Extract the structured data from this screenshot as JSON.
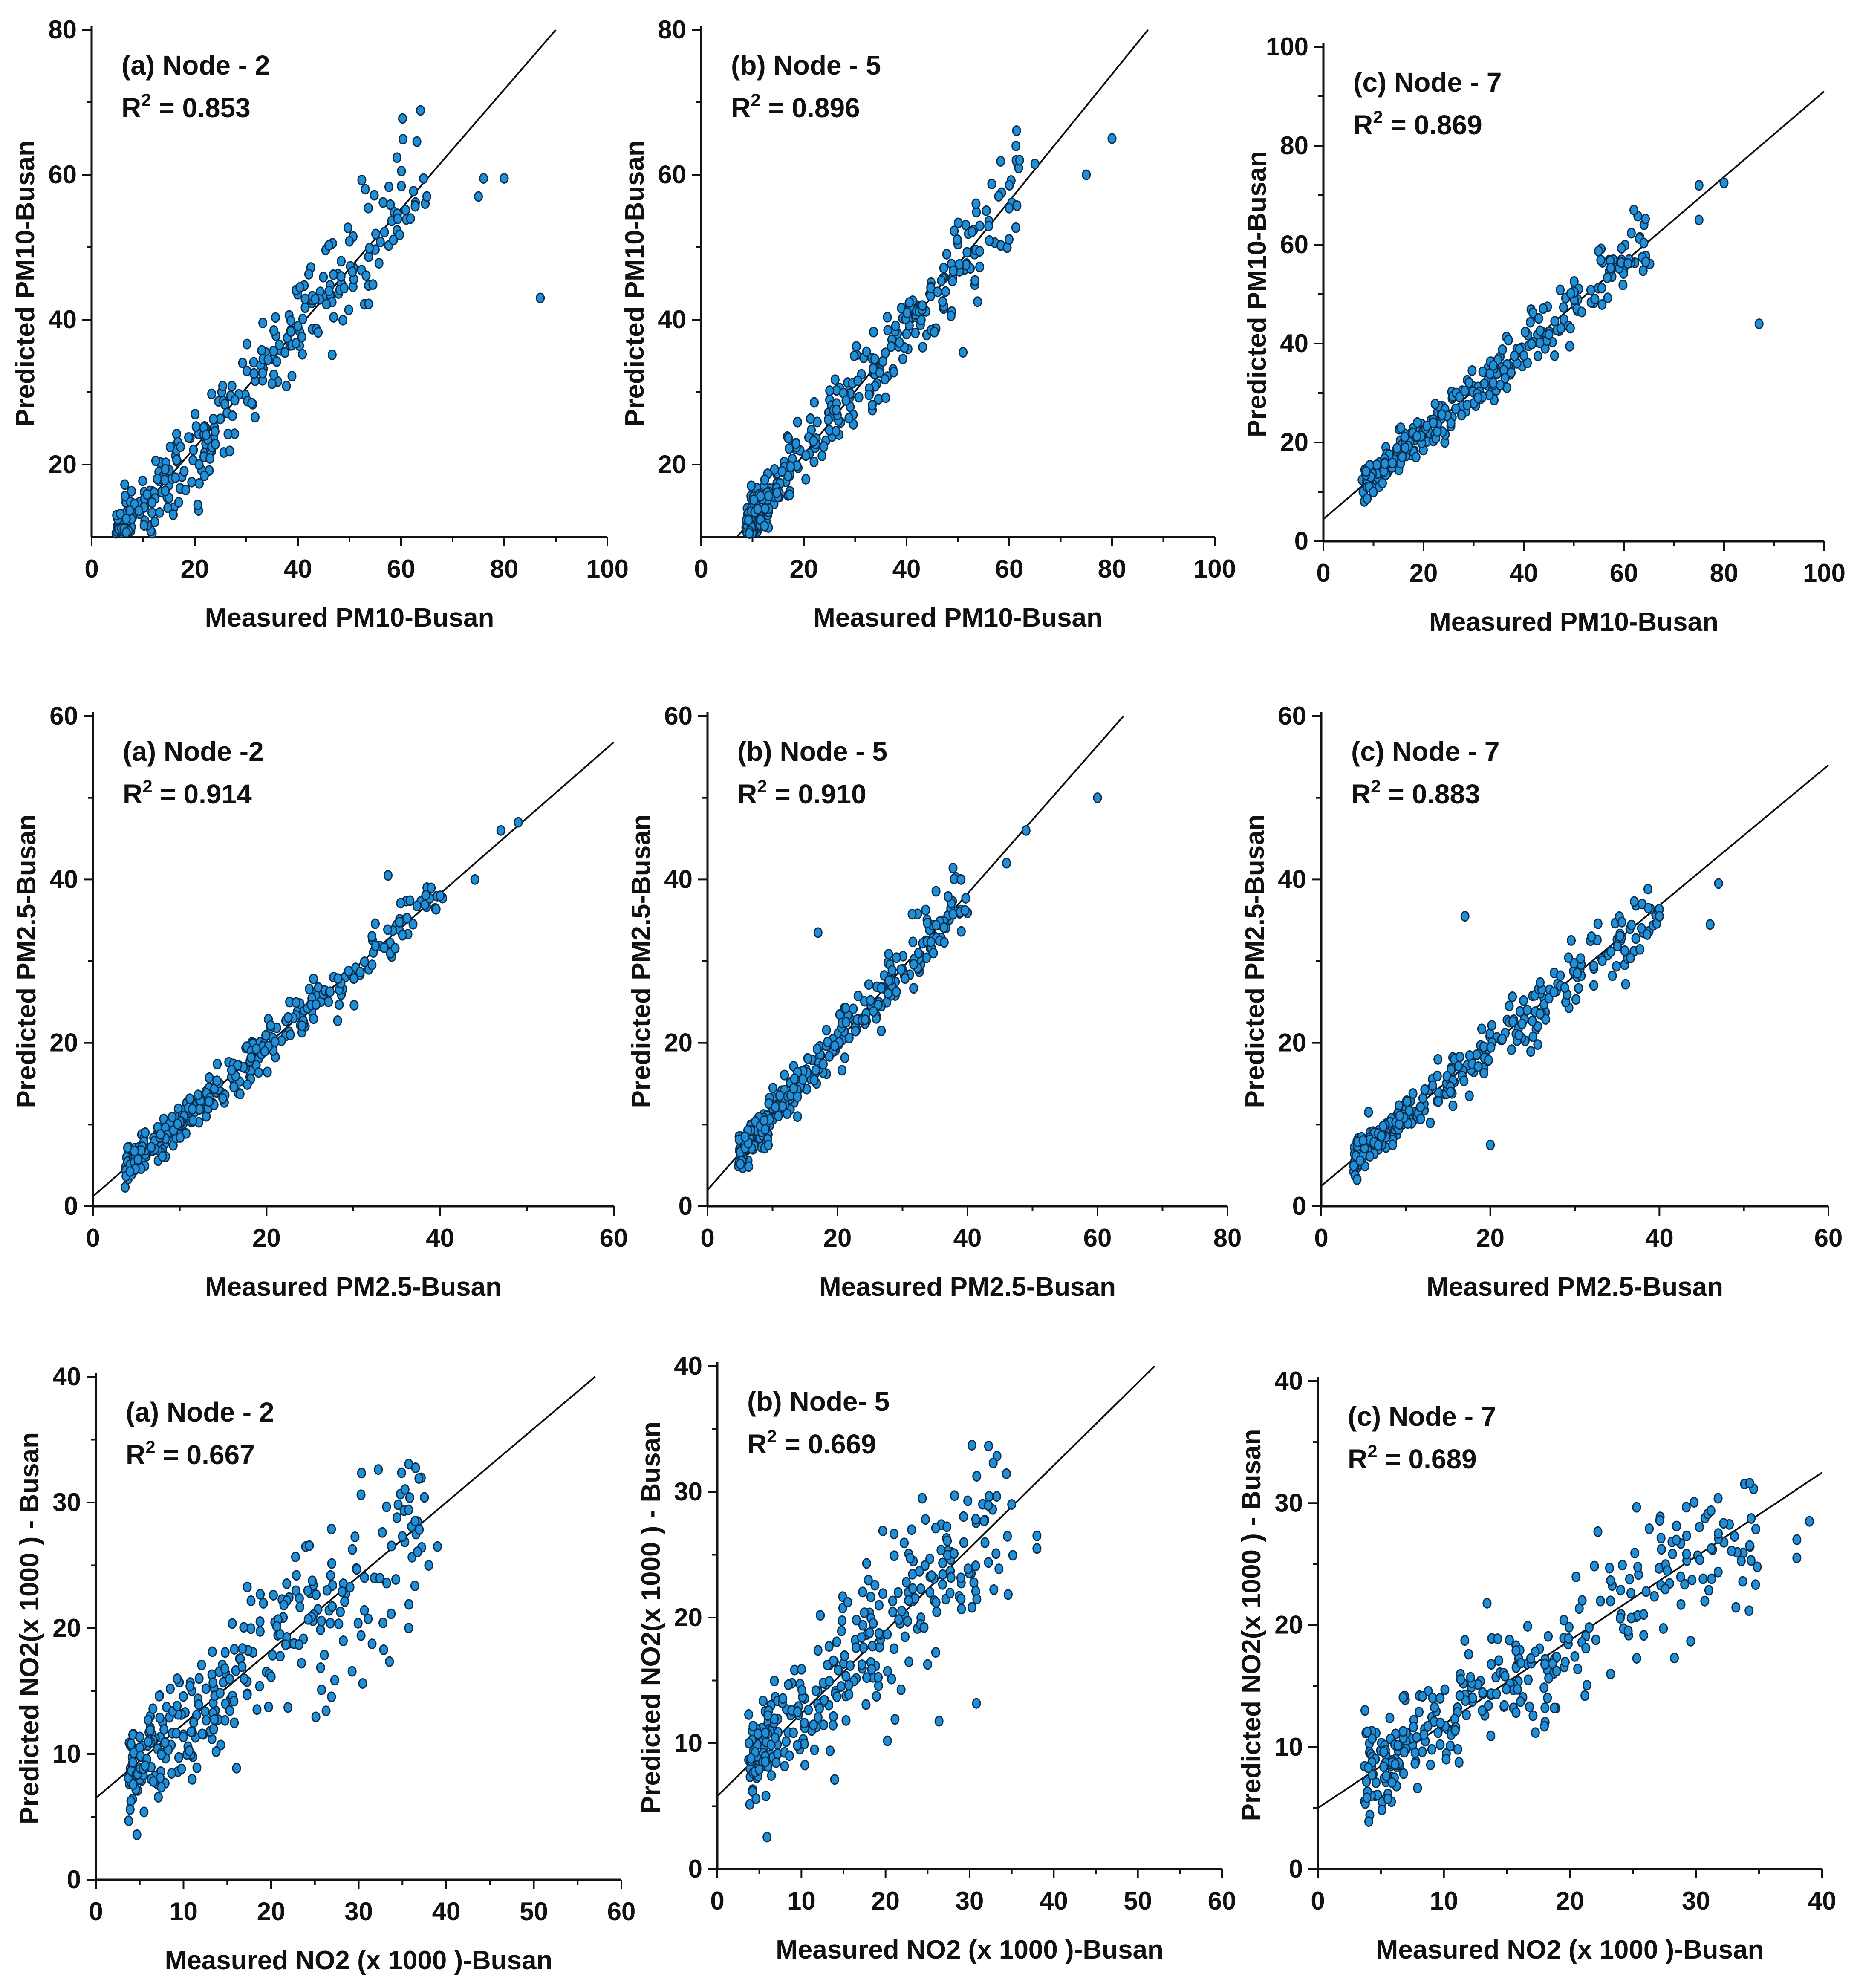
{
  "chart_data": [
    {
      "type": "scatter",
      "panel_title": "(a) Node - 2",
      "r2_value": "0.853",
      "xlabel": "Measured PM10-Busan",
      "ylabel": "Predicted PM10-Busan",
      "xlim": [
        0,
        100
      ],
      "ylim": [
        10,
        80
      ],
      "xticks": [
        0,
        20,
        40,
        60,
        80,
        100
      ],
      "yticks": [
        20,
        40,
        60,
        80
      ],
      "fit_line": {
        "x": [
          5,
          90
        ],
        "y": [
          10,
          80
        ]
      },
      "n_points": 310,
      "point_x_range": [
        5,
        65
      ],
      "noise": 3.8,
      "outliers": [
        {
          "x": 75,
          "y": 57
        },
        {
          "x": 80,
          "y": 59.5
        },
        {
          "x": 76,
          "y": 59.5
        },
        {
          "x": 87,
          "y": 43
        },
        {
          "x": 65,
          "y": 57
        }
      ]
    },
    {
      "type": "scatter",
      "panel_title": "(b) Node - 5",
      "r2_value": "0.896",
      "xlabel": "Measured PM10-Busan",
      "ylabel": "Predicted PM10-Busan",
      "xlim": [
        0,
        100
      ],
      "ylim": [
        10,
        80
      ],
      "xticks": [
        0,
        20,
        40,
        60,
        80,
        100
      ],
      "yticks": [
        20,
        40,
        60,
        80
      ],
      "fit_line": {
        "x": [
          7,
          87
        ],
        "y": [
          10,
          80
        ]
      },
      "n_points": 310,
      "point_x_range": [
        9,
        62
      ],
      "noise": 3.3,
      "outliers": [
        {
          "x": 80,
          "y": 65
        },
        {
          "x": 75,
          "y": 60
        },
        {
          "x": 62,
          "y": 62
        },
        {
          "x": 65,
          "y": 61.5
        },
        {
          "x": 51,
          "y": 35.5
        }
      ]
    },
    {
      "type": "scatter",
      "panel_title": "(c) Node - 7",
      "r2_value": "0.869",
      "xlabel": "Measured PM10-Busan",
      "ylabel": "Predicted PM10-Busan",
      "xlim": [
        0,
        100
      ],
      "ylim": [
        0,
        100
      ],
      "xticks": [
        0,
        20,
        40,
        60,
        80,
        100
      ],
      "yticks": [
        0,
        20,
        40,
        60,
        80,
        100
      ],
      "fit_line": {
        "x": [
          0,
          100
        ],
        "y": [
          4.5,
          91
        ]
      },
      "n_points": 320,
      "point_x_range": [
        8,
        65
      ],
      "noise": 2.8,
      "outliers": [
        {
          "x": 87,
          "y": 44
        },
        {
          "x": 80,
          "y": 72.5
        },
        {
          "x": 75,
          "y": 72
        },
        {
          "x": 75,
          "y": 65
        },
        {
          "x": 62,
          "y": 67
        }
      ]
    },
    {
      "type": "scatter",
      "panel_title": "(a) Node -2",
      "r2_value": "0.914",
      "xlabel": "Measured PM2.5-Busan",
      "ylabel": "Predicted PM2.5-Busan",
      "xlim": [
        0,
        60
      ],
      "ylim": [
        0,
        60
      ],
      "xticks": [
        0,
        20,
        40,
        60
      ],
      "yticks": [
        0,
        20,
        40,
        60
      ],
      "fit_line": {
        "x": [
          0,
          60
        ],
        "y": [
          1.2,
          56.8
        ]
      },
      "n_points": 300,
      "point_x_range": [
        4,
        40
      ],
      "noise": 1.8,
      "outliers": [
        {
          "x": 49,
          "y": 47
        },
        {
          "x": 47,
          "y": 46
        },
        {
          "x": 44,
          "y": 40
        },
        {
          "x": 34,
          "y": 40.5
        },
        {
          "x": 40,
          "y": 38
        }
      ]
    },
    {
      "type": "scatter",
      "panel_title": "(b) Node - 5",
      "r2_value": "0.910",
      "xlabel": "Measured PM2.5-Busan",
      "ylabel": "Predicted PM2.5-Busan",
      "xlim": [
        0,
        80
      ],
      "ylim": [
        0,
        60
      ],
      "xticks": [
        0,
        20,
        40,
        60,
        80
      ],
      "yticks": [
        0,
        20,
        40,
        60
      ],
      "fit_line": {
        "x": [
          0,
          64
        ],
        "y": [
          2,
          60
        ]
      },
      "n_points": 300,
      "point_x_range": [
        5,
        40
      ],
      "noise": 1.8,
      "outliers": [
        {
          "x": 60,
          "y": 50
        },
        {
          "x": 49,
          "y": 46
        },
        {
          "x": 46,
          "y": 42
        },
        {
          "x": 17,
          "y": 33.5
        },
        {
          "x": 39,
          "y": 40
        }
      ]
    },
    {
      "type": "scatter",
      "panel_title": "(c) Node - 7",
      "r2_value": "0.883",
      "xlabel": "Measured PM2.5-Busan",
      "ylabel": "Predicted PM2.5-Busan",
      "xlim": [
        0,
        60
      ],
      "ylim": [
        0,
        60
      ],
      "xticks": [
        0,
        20,
        40,
        60
      ],
      "yticks": [
        0,
        20,
        40,
        60
      ],
      "fit_line": {
        "x": [
          0,
          60
        ],
        "y": [
          2.5,
          54
        ]
      },
      "n_points": 300,
      "point_x_range": [
        4,
        40
      ],
      "noise": 2.0,
      "outliers": [
        {
          "x": 47,
          "y": 39.5
        },
        {
          "x": 46,
          "y": 34.5
        },
        {
          "x": 17,
          "y": 35.5
        },
        {
          "x": 20,
          "y": 7.5
        },
        {
          "x": 40,
          "y": 35.5
        }
      ]
    },
    {
      "type": "scatter",
      "panel_title": "(a) Node - 2",
      "r2_value": "0.667",
      "xlabel": "Measured NO2 (x 1000 )-Busan",
      "ylabel": "Predicted NO2(x 1000 ) - Busan",
      "xlim": [
        0,
        60
      ],
      "ylim": [
        0,
        40
      ],
      "xticks": [
        0,
        10,
        20,
        30,
        40,
        50,
        60
      ],
      "yticks": [
        0,
        10,
        20,
        30,
        40
      ],
      "fit_line": {
        "x": [
          0,
          57
        ],
        "y": [
          6.5,
          40
        ]
      },
      "n_points": 300,
      "point_x_range": [
        4,
        38
      ],
      "noise": 3.2,
      "outliers": [
        {
          "x": 4,
          "y": 10.8
        },
        {
          "x": 39,
          "y": 26.5
        },
        {
          "x": 38,
          "y": 25
        },
        {
          "x": 35,
          "y": 27.3
        }
      ]
    },
    {
      "type": "scatter",
      "panel_title": "(b) Node- 5",
      "r2_value": "0.669",
      "xlabel": "Measured NO2 (x 1000 )-Busan",
      "ylabel": "Predicted NO2(x 1000 ) - Busan",
      "xlim": [
        0,
        60
      ],
      "ylim": [
        0,
        40
      ],
      "xticks": [
        0,
        10,
        20,
        30,
        40,
        50,
        60
      ],
      "yticks": [
        0,
        10,
        20,
        30,
        40
      ],
      "fit_line": {
        "x": [
          0,
          52
        ],
        "y": [
          5.8,
          40
        ]
      },
      "n_points": 300,
      "point_x_range": [
        4,
        35
      ],
      "noise": 3.3,
      "outliers": [
        {
          "x": 4,
          "y": 8.8
        },
        {
          "x": 38,
          "y": 25.5
        },
        {
          "x": 38,
          "y": 26.5
        },
        {
          "x": 35,
          "y": 29
        }
      ]
    },
    {
      "type": "scatter",
      "panel_title": "(c) Node - 7",
      "r2_value": "0.689",
      "xlabel": "Measured NO2 (x 1000 )-Busan",
      "ylabel": "Predicted NO2(x 1000 ) - Busan",
      "xlim": [
        0,
        40
      ],
      "ylim": [
        0,
        40
      ],
      "xticks": [
        0,
        10,
        20,
        30,
        40
      ],
      "yticks": [
        0,
        10,
        20,
        30,
        40
      ],
      "fit_line": {
        "x": [
          0,
          40
        ],
        "y": [
          5,
          32.5
        ]
      },
      "n_points": 320,
      "point_x_range": [
        4,
        35
      ],
      "noise": 3.2,
      "outliers": [
        {
          "x": 4,
          "y": 8.3
        },
        {
          "x": 39,
          "y": 28.5
        },
        {
          "x": 38,
          "y": 25.5
        },
        {
          "x": 38,
          "y": 27
        }
      ]
    }
  ]
}
